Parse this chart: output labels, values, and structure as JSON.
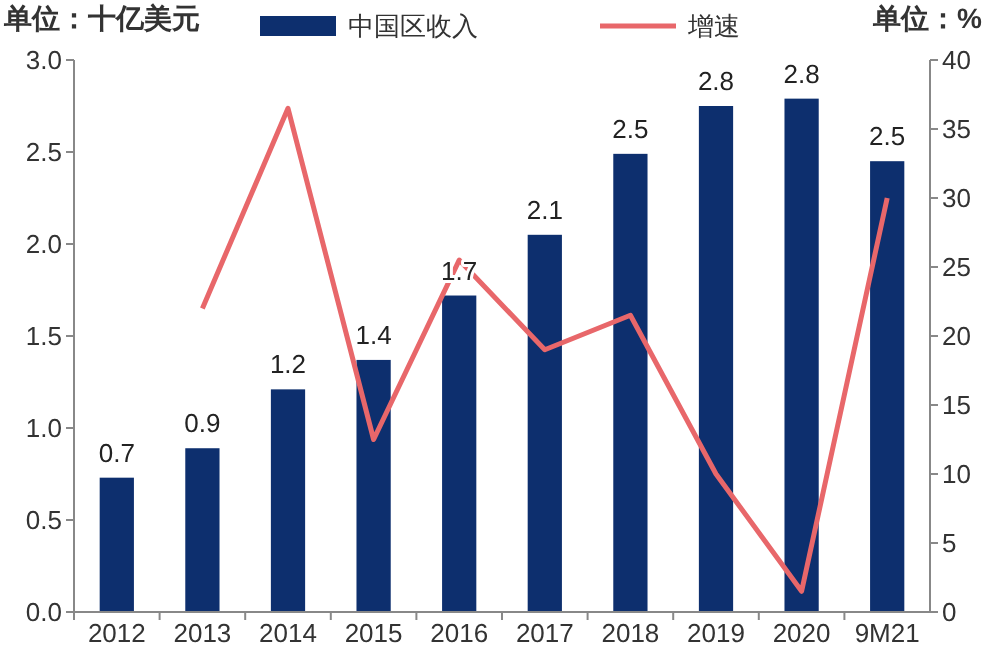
{
  "chart_data": {
    "type": "bar",
    "ylabel": "单位：十亿美元",
    "y2label": "单位：%",
    "categories": [
      "2012",
      "2013",
      "2014",
      "2015",
      "2016",
      "2017",
      "2018",
      "2019",
      "2020",
      "9M21"
    ],
    "series": [
      {
        "name": "中国区收入",
        "color": "#0d2f6e",
        "values": [
          0.73,
          0.89,
          1.21,
          1.37,
          1.72,
          2.05,
          2.49,
          2.75,
          2.79,
          2.45
        ],
        "value_labels": [
          "0.7",
          "0.9",
          "1.2",
          "1.4",
          "1.7",
          "2.1",
          "2.5",
          "2.8",
          "2.8",
          "2.5"
        ]
      },
      {
        "name": "增速",
        "type": "line",
        "axis": "y2",
        "color": "#e8676a",
        "values": [
          null,
          22,
          36.5,
          12.5,
          25.5,
          19,
          21.5,
          10,
          1.5,
          30
        ]
      }
    ],
    "ylim": [
      0,
      3
    ],
    "yticks": [
      {
        "value": 0,
        "label": "0.0"
      },
      {
        "value": 0.5,
        "label": "0.5"
      },
      {
        "value": 1,
        "label": "1.0"
      },
      {
        "value": 1.5,
        "label": "1.5"
      },
      {
        "value": 2,
        "label": "2.0"
      },
      {
        "value": 2.5,
        "label": "2.5"
      },
      {
        "value": 3,
        "label": "3.0"
      }
    ],
    "y2lim": [
      0,
      40
    ],
    "y2ticks": [
      0,
      5,
      10,
      15,
      20,
      25,
      30,
      35,
      40
    ],
    "grid": false,
    "legend": "top",
    "marker": "none",
    "line_style": "solid"
  }
}
